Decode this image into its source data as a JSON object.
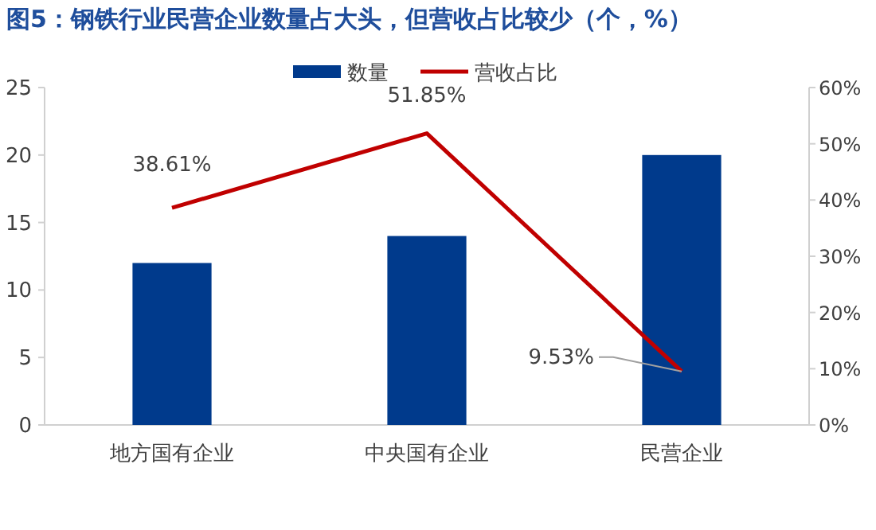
{
  "chart_data": {
    "type": "bar",
    "title": "图5：钢铁行业民营企业数量占大头，但营收占比较少（个，%）",
    "categories": [
      "地方国有企业",
      "中央国有企业",
      "民营企业"
    ],
    "series": [
      {
        "name": "数量",
        "color": "#003a8c",
        "values": [
          12,
          14,
          20
        ]
      },
      {
        "name": "营收占比",
        "type": "line",
        "axis": "y2",
        "color": "#c00000",
        "values": [
          38.61,
          51.85,
          9.53
        ],
        "value_labels": [
          "38.61%",
          "51.85%",
          "9.53%"
        ]
      }
    ],
    "ylim": [
      0,
      25
    ],
    "yticks": [
      0,
      5,
      10,
      15,
      20,
      25
    ],
    "y2lim": [
      0,
      60
    ],
    "y2ticks": [
      {
        "value": 0,
        "label": "0%"
      },
      {
        "value": 10,
        "label": "10%"
      },
      {
        "value": 20,
        "label": "20%"
      },
      {
        "value": 30,
        "label": "30%"
      },
      {
        "value": 40,
        "label": "40%"
      },
      {
        "value": 50,
        "label": "50%"
      },
      {
        "value": 60,
        "label": "60%"
      }
    ],
    "legend": "top",
    "grid": false,
    "marker": "none"
  }
}
